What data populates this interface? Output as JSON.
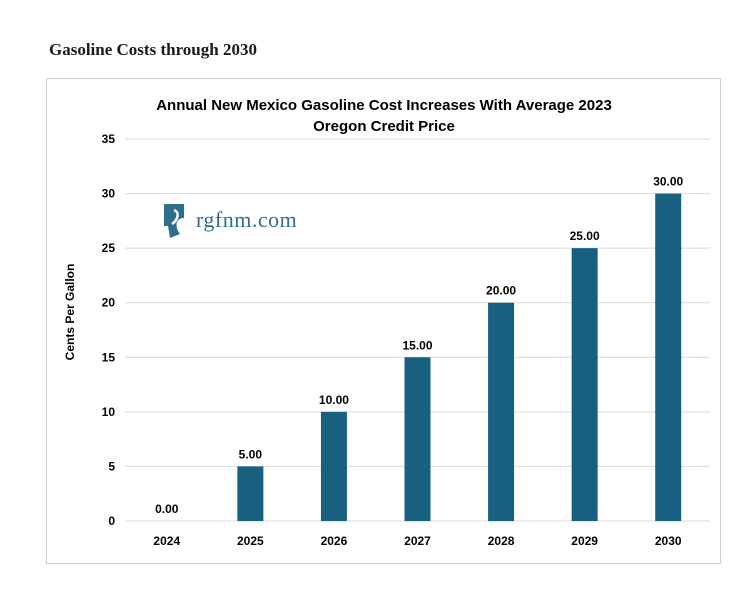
{
  "page": {
    "heading": "Gasoline Costs through 2030"
  },
  "logo": {
    "text": "rgfnm.com"
  },
  "colors": {
    "bar": "#17607f",
    "grid": "#d9d9d9",
    "text": "#000000"
  },
  "chart_data": {
    "type": "bar",
    "title_line1": "Annual New Mexico Gasoline Cost Increases With Average 2023",
    "title_line2": "Oregon Credit Price",
    "xlabel": "",
    "ylabel": "Cents Per Gallon",
    "categories": [
      "2024",
      "2025",
      "2026",
      "2027",
      "2028",
      "2029",
      "2030"
    ],
    "values": [
      0,
      5,
      10,
      15,
      20,
      25,
      30
    ],
    "value_labels": [
      "0.00",
      "5.00",
      "10.00",
      "15.00",
      "20.00",
      "25.00",
      "30.00"
    ],
    "yticks": [
      0,
      5,
      10,
      15,
      20,
      25,
      30,
      35
    ],
    "ylim": [
      0,
      35
    ],
    "grid": true
  }
}
